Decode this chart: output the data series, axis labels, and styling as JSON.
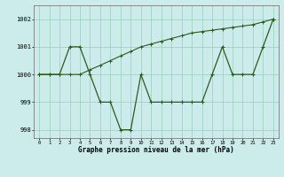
{
  "series1_x": [
    0,
    1,
    2,
    3,
    4,
    5,
    6,
    7,
    8,
    9,
    10,
    11,
    12,
    13,
    14,
    15,
    16,
    17,
    18,
    19,
    20,
    21,
    22,
    23
  ],
  "series1_y": [
    1000,
    1000,
    1000,
    1001,
    1001,
    1000,
    999,
    999,
    998,
    998,
    1000,
    999,
    999,
    999,
    999,
    999,
    999,
    1000,
    1001,
    1000,
    1000,
    1000,
    1001,
    1002
  ],
  "series2_x": [
    0,
    1,
    2,
    3,
    4,
    5,
    6,
    7,
    8,
    9,
    10,
    11,
    12,
    13,
    14,
    15,
    16,
    17,
    18,
    19,
    20,
    21,
    22,
    23
  ],
  "series2_y": [
    1000,
    1000,
    1000,
    1000,
    1000,
    1000.17,
    1000.33,
    1000.5,
    1000.67,
    1000.83,
    1001.0,
    1001.1,
    1001.2,
    1001.3,
    1001.4,
    1001.5,
    1001.55,
    1001.6,
    1001.65,
    1001.7,
    1001.75,
    1001.8,
    1001.9,
    1002.0
  ],
  "line_color": "#2d5a1b",
  "bg_color": "#ccecec",
  "grid_color": "#99ccbb",
  "xlabel": "Graphe pression niveau de la mer (hPa)",
  "ylim": [
    997.7,
    1002.5
  ],
  "xlim": [
    -0.5,
    23.5
  ],
  "yticks": [
    998,
    999,
    1000,
    1001,
    1002
  ],
  "xticks": [
    0,
    1,
    2,
    3,
    4,
    5,
    6,
    7,
    8,
    9,
    10,
    11,
    12,
    13,
    14,
    15,
    16,
    17,
    18,
    19,
    20,
    21,
    22,
    23
  ]
}
